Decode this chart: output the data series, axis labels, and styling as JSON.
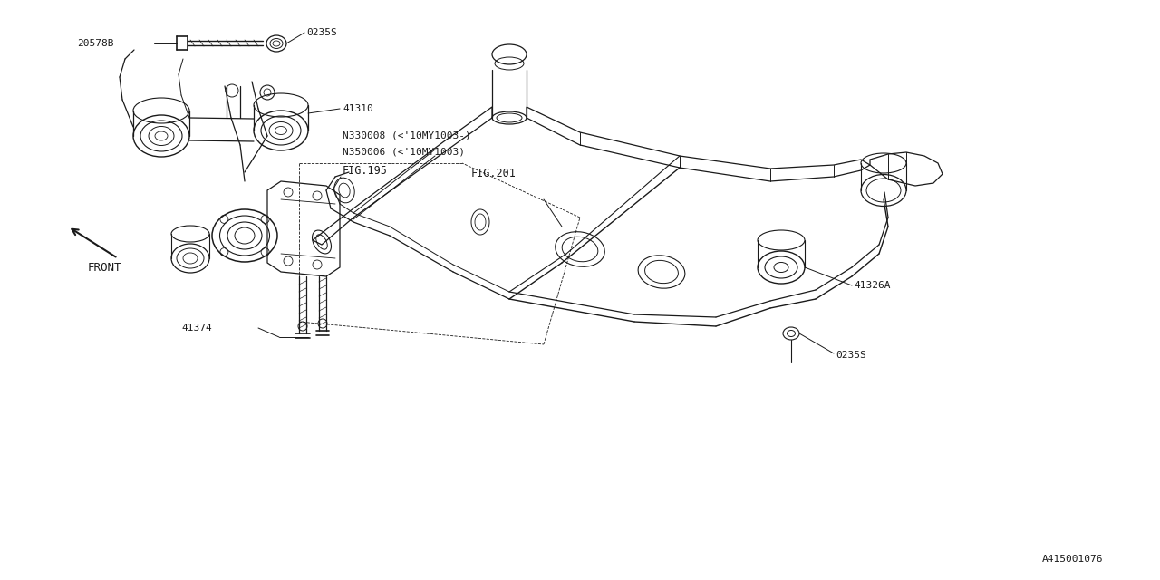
{
  "bg_color": "#ffffff",
  "line_color": "#1a1a1a",
  "fig_width": 12.8,
  "fig_height": 6.4,
  "dpi": 100,
  "diagram_id": "A415001076",
  "font": "monospace",
  "labels": {
    "front": "FRONT",
    "fig195": "FIG.195",
    "fig201": "FIG.201",
    "part_41374": "41374",
    "part_41326A": "41326A",
    "part_0235S_top": "0235S",
    "part_0235S_bot": "0235S",
    "part_41310": "41310",
    "part_20578B": "20578B",
    "part_N350006": "N350006 (<'10MY1003)",
    "part_N330008": "N330008 (<'10MY1003-)"
  }
}
